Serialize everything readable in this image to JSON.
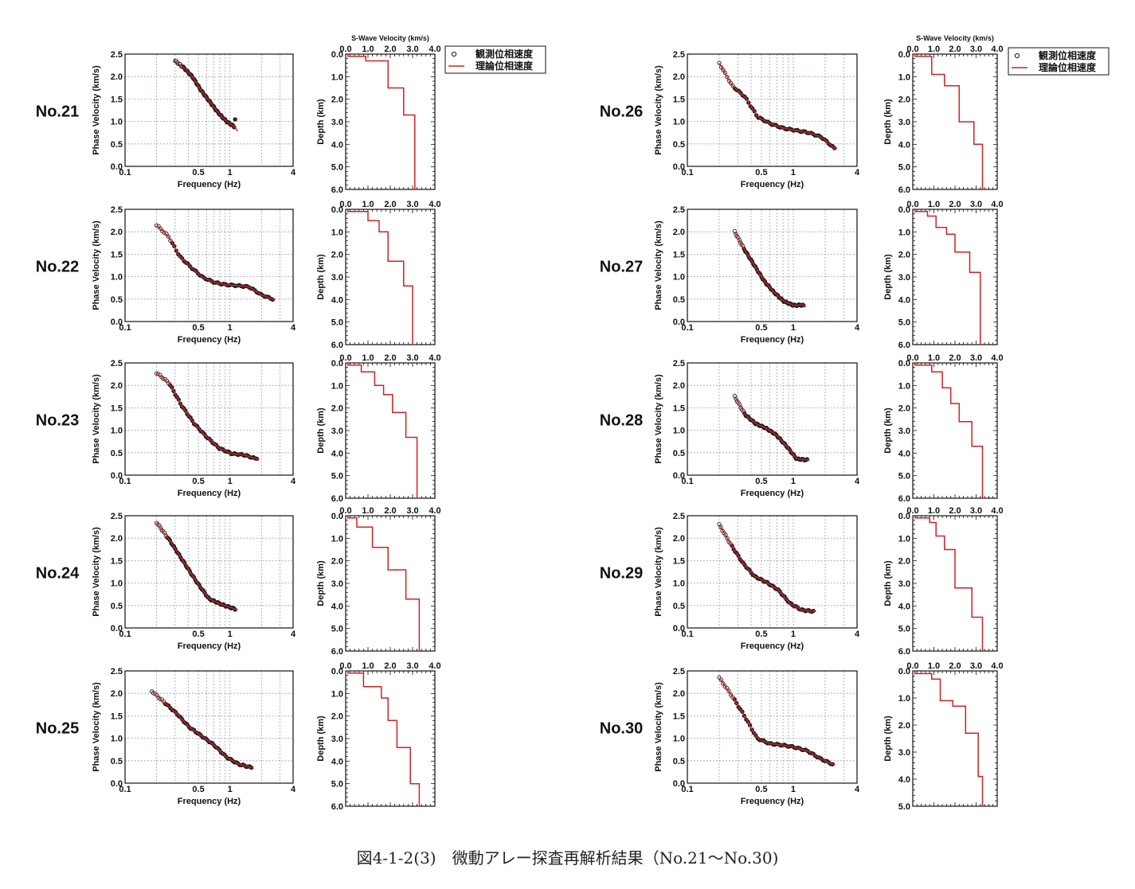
{
  "caption": "図4-1-2(3)　微動アレー探査再解析結果（No.21～No.30)",
  "legend": {
    "observed": "観測位相速度",
    "theoretical": "理論位相速度"
  },
  "dispersion_axis": {
    "xlabel": "Frequency (Hz)",
    "ylabel": "Phase Velocity (km/s)",
    "x_scale": "log",
    "xlim": [
      0.1,
      4
    ],
    "xtick_labels": [
      "0.1",
      "0.5",
      "1",
      "4"
    ],
    "ylim": [
      0,
      2.5
    ],
    "ytick_labels": [
      "0.0",
      "0.5",
      "1.0",
      "1.5",
      "2.0",
      "2.5"
    ]
  },
  "profile_axis": {
    "xlabel": "S-Wave Velocity (km/s)",
    "ylabel": "Depth (km)",
    "xlim": [
      0,
      4
    ],
    "xtick_labels": [
      "0.0",
      "1.0",
      "2.0",
      "3.0",
      "4.0"
    ],
    "ytick_labels": [
      "0.0",
      "1.0",
      "2.0",
      "3.0",
      "4.0",
      "5.0",
      "6.0"
    ],
    "ytick_labels_short": [
      "0.0",
      "1.0",
      "2.0",
      "3.0",
      "4.0",
      "5.0"
    ]
  },
  "colors": {
    "observed": "#1a1a1a",
    "theoretical": "#d42020",
    "grid": "#9aa0c8"
  },
  "chart_data": [
    {
      "station": "No.21",
      "type": "line",
      "dispersion": {
        "f0": 0.3,
        "f1": 1.12,
        "v": [
          2.35,
          2.2,
          2.0,
          1.7,
          1.45,
          1.2,
          1.0,
          0.87
        ],
        "obs_end": 1.05,
        "theo_extra": 0.78
      },
      "profile": {
        "max_depth": 6.0,
        "layers": [
          [
            0.1,
            0.0,
            0.1
          ],
          [
            0.9,
            0.1,
            0.3
          ],
          [
            1.9,
            0.3,
            1.5
          ],
          [
            2.6,
            1.5,
            2.7
          ],
          [
            3.1,
            2.7,
            6.0
          ]
        ]
      }
    },
    {
      "station": "No.22",
      "type": "line",
      "dispersion": {
        "f0": 0.2,
        "f1": 2.55,
        "v": [
          2.15,
          1.9,
          1.45,
          1.2,
          0.98,
          0.87,
          0.82,
          0.8,
          0.77,
          0.6,
          0.5
        ],
        "obs_end": 0.5,
        "theo_extra": 0.5
      },
      "profile": {
        "max_depth": 6.0,
        "layers": [
          [
            0.1,
            0.0,
            0.1
          ],
          [
            1.0,
            0.1,
            0.5
          ],
          [
            1.5,
            0.5,
            1.0
          ],
          [
            1.9,
            1.0,
            2.3
          ],
          [
            2.6,
            2.3,
            3.4
          ],
          [
            3.0,
            3.4,
            6.0
          ]
        ]
      }
    },
    {
      "station": "No.23",
      "type": "line",
      "dispersion": {
        "f0": 0.2,
        "f1": 1.8,
        "v": [
          2.28,
          2.05,
          1.55,
          1.15,
          0.85,
          0.6,
          0.48,
          0.45,
          0.36
        ],
        "obs_end": 0.38,
        "theo_extra": 0.33
      },
      "profile": {
        "max_depth": 6.0,
        "layers": [
          [
            0.1,
            0.0,
            0.1
          ],
          [
            0.7,
            0.1,
            0.4
          ],
          [
            1.3,
            0.4,
            1.0
          ],
          [
            1.7,
            1.0,
            1.4
          ],
          [
            2.1,
            1.4,
            2.2
          ],
          [
            2.7,
            2.2,
            3.3
          ],
          [
            3.2,
            3.3,
            6.0
          ]
        ]
      }
    },
    {
      "station": "No.24",
      "type": "line",
      "dispersion": {
        "f0": 0.2,
        "f1": 1.12,
        "v": [
          2.35,
          1.95,
          1.5,
          1.05,
          0.65,
          0.52,
          0.42
        ],
        "obs_end": 0.42,
        "theo_extra": 0.4
      },
      "profile": {
        "max_depth": 6.0,
        "layers": [
          [
            0.1,
            0.0,
            0.1
          ],
          [
            0.5,
            0.1,
            0.5
          ],
          [
            1.2,
            0.5,
            1.4
          ],
          [
            1.9,
            1.4,
            2.4
          ],
          [
            2.7,
            2.4,
            3.7
          ],
          [
            3.3,
            3.7,
            6.0
          ]
        ]
      }
    },
    {
      "station": "No.25",
      "type": "line",
      "dispersion": {
        "f0": 0.18,
        "f1": 1.6,
        "v": [
          2.05,
          1.8,
          1.55,
          1.25,
          1.05,
          0.85,
          0.58,
          0.42,
          0.35
        ],
        "obs_end": 0.35,
        "theo_extra": 0.33
      },
      "profile": {
        "max_depth": 6.0,
        "layers": [
          [
            0.1,
            0.0,
            0.1
          ],
          [
            0.8,
            0.1,
            0.7
          ],
          [
            1.6,
            0.7,
            1.2
          ],
          [
            1.9,
            1.2,
            2.2
          ],
          [
            2.3,
            2.2,
            3.4
          ],
          [
            2.9,
            3.4,
            5.0
          ],
          [
            3.3,
            5.0,
            6.0
          ]
        ]
      }
    },
    {
      "station": "No.26",
      "type": "line",
      "dispersion": {
        "f0": 0.2,
        "f1": 2.45,
        "v": [
          2.3,
          1.8,
          1.55,
          1.1,
          0.95,
          0.85,
          0.8,
          0.75,
          0.65,
          0.4
        ],
        "obs_end": 0.4,
        "theo_extra": 0.4
      },
      "profile": {
        "max_depth": 6.0,
        "layers": [
          [
            0.1,
            0.0,
            0.1
          ],
          [
            0.9,
            0.1,
            0.9
          ],
          [
            1.5,
            0.9,
            1.4
          ],
          [
            2.2,
            1.4,
            3.0
          ],
          [
            2.9,
            3.0,
            4.0
          ],
          [
            3.3,
            4.0,
            6.0
          ]
        ]
      }
    },
    {
      "station": "No.27",
      "type": "line",
      "dispersion": {
        "f0": 0.28,
        "f1": 1.25,
        "v": [
          2.0,
          1.6,
          1.25,
          0.9,
          0.65,
          0.45,
          0.36,
          0.37
        ],
        "obs_end": 0.35,
        "theo_extra": 0.33
      },
      "profile": {
        "max_depth": 6.0,
        "layers": [
          [
            0.1,
            0.0,
            0.1
          ],
          [
            0.7,
            0.1,
            0.3
          ],
          [
            1.1,
            0.3,
            0.8
          ],
          [
            1.6,
            0.8,
            1.1
          ],
          [
            2.0,
            1.1,
            1.9
          ],
          [
            2.7,
            1.9,
            2.8
          ],
          [
            3.2,
            2.8,
            6.0
          ]
        ]
      }
    },
    {
      "station": "No.28",
      "type": "line",
      "dispersion": {
        "f0": 0.28,
        "f1": 1.35,
        "v": [
          1.75,
          1.35,
          1.15,
          1.05,
          0.9,
          0.65,
          0.36,
          0.34
        ],
        "obs_end": 0.34,
        "theo_extra": 0.33
      },
      "profile": {
        "max_depth": 6.0,
        "layers": [
          [
            0.1,
            0.0,
            0.1
          ],
          [
            0.9,
            0.1,
            0.4
          ],
          [
            1.4,
            0.4,
            1.1
          ],
          [
            1.8,
            1.1,
            1.8
          ],
          [
            2.2,
            1.8,
            2.6
          ],
          [
            2.8,
            2.6,
            3.7
          ],
          [
            3.3,
            3.7,
            6.0
          ]
        ]
      }
    },
    {
      "station": "No.29",
      "type": "line",
      "dispersion": {
        "f0": 0.2,
        "f1": 1.55,
        "v": [
          2.3,
          1.85,
          1.45,
          1.15,
          1.02,
          0.85,
          0.55,
          0.4,
          0.37
        ],
        "obs_end": 0.37,
        "theo_extra": 0.37
      },
      "profile": {
        "max_depth": 6.0,
        "layers": [
          [
            0.1,
            0.0,
            0.1
          ],
          [
            0.8,
            0.1,
            0.3
          ],
          [
            1.1,
            0.3,
            0.9
          ],
          [
            1.5,
            0.9,
            1.5
          ],
          [
            2.0,
            1.5,
            3.2
          ],
          [
            2.8,
            3.2,
            4.5
          ],
          [
            3.3,
            4.5,
            6.0
          ]
        ]
      }
    },
    {
      "station": "No.30",
      "type": "line",
      "dispersion": {
        "f0": 0.2,
        "f1": 2.35,
        "v": [
          2.35,
          1.95,
          1.5,
          1.0,
          0.88,
          0.85,
          0.8,
          0.72,
          0.55,
          0.42
        ],
        "obs_end": 0.42,
        "theo_extra": 0.42
      },
      "profile": {
        "max_depth": 5.0,
        "layers": [
          [
            0.1,
            0.0,
            0.1
          ],
          [
            0.9,
            0.1,
            0.3
          ],
          [
            1.3,
            0.3,
            1.1
          ],
          [
            1.9,
            1.1,
            1.3
          ],
          [
            2.5,
            1.3,
            2.3
          ],
          [
            3.1,
            2.3,
            3.9
          ],
          [
            3.3,
            3.9,
            5.0
          ]
        ]
      }
    }
  ]
}
